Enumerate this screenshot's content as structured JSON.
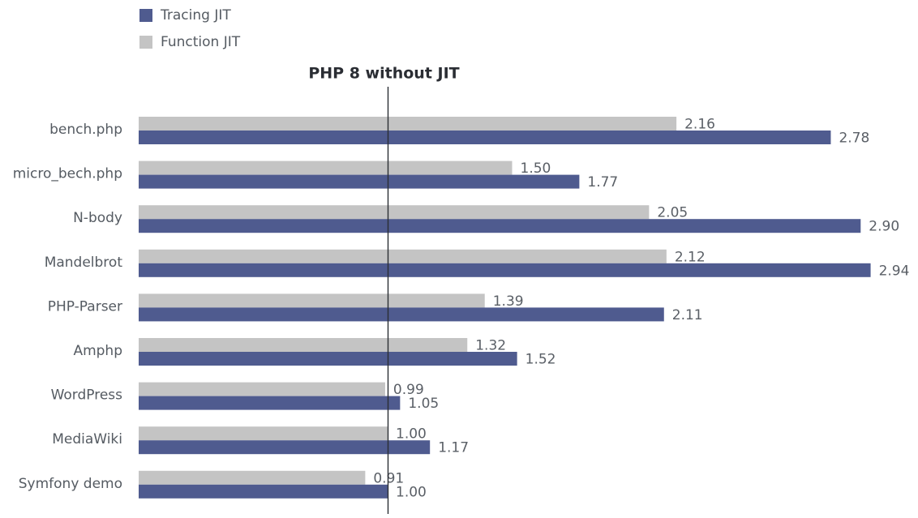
{
  "chart_data": {
    "type": "bar",
    "orientation": "horizontal",
    "categories": [
      "bench.php",
      "micro_bech.php",
      "N-body",
      "Mandelbrot",
      "PHP-Parser",
      "Amphp",
      "WordPress",
      "MediaWiki",
      "Symfony demo"
    ],
    "series": [
      {
        "name": "Function JIT",
        "color": "#c4c4c4",
        "values": [
          2.16,
          1.5,
          2.05,
          2.12,
          1.39,
          1.32,
          0.99,
          1.0,
          0.91
        ],
        "labels": [
          "2.16",
          "1.50",
          "2.05",
          "2.12",
          "1.39",
          "1.32",
          "0.99",
          "1.00",
          "0.91"
        ]
      },
      {
        "name": "Tracing JIT",
        "color": "#4f5b8f",
        "values": [
          2.78,
          1.77,
          2.9,
          2.94,
          2.11,
          1.52,
          1.05,
          1.17,
          1.0
        ],
        "labels": [
          "2.78",
          "1.77",
          "2.90",
          "2.94",
          "2.11",
          "1.52",
          "1.05",
          "1.17",
          "1.00"
        ]
      }
    ],
    "legend": {
      "placement": "top-left",
      "order": [
        "Tracing JIT",
        "Function JIT"
      ]
    },
    "reference_line": {
      "value": 1.0,
      "label": "PHP 8 without JIT"
    },
    "xlim": [
      0,
      3.0
    ],
    "grid": false
  }
}
